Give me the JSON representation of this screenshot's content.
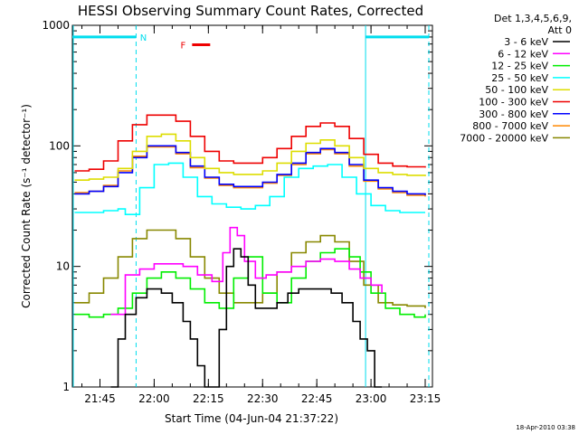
{
  "title": "HESSI Observing Summary Count Rates, Corrected",
  "footer_date": "18-Apr-2010 03:38",
  "detector_label_1": "Det 1,3,4,5,6,9,",
  "detector_label_2": "Att 0",
  "night_marker": "N",
  "flare_marker": "F",
  "chart_data": {
    "type": "line",
    "title": "HESSI Observing Summary Count Rates, Corrected",
    "xlabel": "Start Time (04-Jun-04 21:37:22)",
    "ylabel": "Corrected Count Rate (s⁻¹ detector⁻¹)",
    "y_scale": "log",
    "ylim": [
      1,
      1000
    ],
    "xlim": [
      "21:37:22",
      "23:17:00"
    ],
    "x_ticks": [
      "21:45",
      "22:00",
      "22:15",
      "22:30",
      "22:45",
      "23:00",
      "23:15"
    ],
    "y_ticks": [
      "1",
      "10",
      "100",
      "1000"
    ],
    "grid": false,
    "legend_position": "right",
    "series": [
      {
        "name": "3 - 6 keV",
        "color": "#000000",
        "x": [
          "21:48",
          "21:50",
          "21:52",
          "21:55",
          "21:58",
          "22:00",
          "22:02",
          "22:05",
          "22:08",
          "22:10",
          "22:12",
          "22:14",
          "22:16",
          "22:18",
          "22:20",
          "22:22",
          "22:24",
          "22:26",
          "22:28",
          "22:31",
          "22:34",
          "22:37",
          "22:40",
          "22:43",
          "22:46",
          "22:49",
          "22:52",
          "22:55",
          "22:57",
          "22:59",
          "23:01",
          "23:03"
        ],
        "values": [
          1.0,
          2.5,
          4.0,
          5.5,
          6.5,
          6.5,
          6.0,
          5.0,
          3.5,
          2.5,
          1.5,
          1.0,
          1.0,
          3.0,
          10.0,
          14.0,
          12.0,
          7.0,
          4.5,
          4.5,
          5.0,
          6.0,
          6.5,
          6.5,
          6.5,
          6.0,
          5.0,
          3.5,
          2.5,
          2.0,
          1.0,
          1.0
        ]
      },
      {
        "name": "6 - 12 keV",
        "color": "#ff00ff",
        "x": [
          "21:48",
          "21:52",
          "21:56",
          "22:00",
          "22:04",
          "22:08",
          "22:12",
          "22:16",
          "22:19",
          "22:21",
          "22:23",
          "22:25",
          "22:28",
          "22:31",
          "22:34",
          "22:38",
          "22:42",
          "22:46",
          "22:50",
          "22:54",
          "22:57",
          "23:00",
          "23:03"
        ],
        "values": [
          4.0,
          8.5,
          9.5,
          10.5,
          10.5,
          10.0,
          8.5,
          7.5,
          13.0,
          21.0,
          18.0,
          11.0,
          8.0,
          8.5,
          9.0,
          10.0,
          11.0,
          11.5,
          11.0,
          9.5,
          8.0,
          7.0,
          6.0
        ]
      },
      {
        "name": "12 - 25 keV",
        "color": "#00ee00",
        "x": [
          "21:38",
          "21:42",
          "21:46",
          "21:50",
          "21:54",
          "21:58",
          "22:02",
          "22:06",
          "22:10",
          "22:14",
          "22:18",
          "22:22",
          "22:26",
          "22:30",
          "22:34",
          "22:38",
          "22:42",
          "22:46",
          "22:50",
          "22:54",
          "22:57",
          "23:00",
          "23:04",
          "23:08",
          "23:12",
          "23:15"
        ],
        "values": [
          4.0,
          3.8,
          4.0,
          4.5,
          6.0,
          8.0,
          9.0,
          8.0,
          6.5,
          5.0,
          4.5,
          8.0,
          12.0,
          6.0,
          5.0,
          8.0,
          11.0,
          13.0,
          14.0,
          12.0,
          9.0,
          6.0,
          4.5,
          4.0,
          3.8,
          4.0
        ]
      },
      {
        "name": "25 - 50 keV",
        "color": "#00ffff",
        "x": [
          "21:38",
          "21:42",
          "21:46",
          "21:50",
          "21:52",
          "21:56",
          "22:00",
          "22:04",
          "22:08",
          "22:12",
          "22:16",
          "22:20",
          "22:24",
          "22:28",
          "22:32",
          "22:36",
          "22:40",
          "22:44",
          "22:48",
          "22:52",
          "22:56",
          "23:00",
          "23:04",
          "23:08",
          "23:12",
          "23:15"
        ],
        "values": [
          28,
          28,
          29,
          30,
          27,
          45,
          70,
          72,
          55,
          38,
          33,
          31,
          30,
          32,
          38,
          55,
          65,
          68,
          70,
          55,
          40,
          32,
          29,
          28,
          28,
          28
        ]
      },
      {
        "name": "50 - 100 keV",
        "color": "#dddd00",
        "x": [
          "21:38",
          "21:42",
          "21:46",
          "21:50",
          "21:54",
          "21:58",
          "22:02",
          "22:06",
          "22:10",
          "22:14",
          "22:18",
          "22:22",
          "22:26",
          "22:30",
          "22:34",
          "22:38",
          "22:42",
          "22:46",
          "22:50",
          "22:54",
          "22:58",
          "23:02",
          "23:06",
          "23:10",
          "23:15"
        ],
        "values": [
          52,
          53,
          55,
          65,
          90,
          120,
          125,
          110,
          80,
          65,
          60,
          58,
          58,
          62,
          72,
          90,
          105,
          112,
          100,
          80,
          65,
          60,
          58,
          57,
          56
        ]
      },
      {
        "name": "100 - 300 keV",
        "color": "#ee0000",
        "x": [
          "21:38",
          "21:42",
          "21:46",
          "21:50",
          "21:54",
          "21:58",
          "22:02",
          "22:06",
          "22:10",
          "22:14",
          "22:18",
          "22:22",
          "22:26",
          "22:30",
          "22:34",
          "22:38",
          "22:42",
          "22:46",
          "22:50",
          "22:54",
          "22:58",
          "23:02",
          "23:06",
          "23:10",
          "23:15"
        ],
        "values": [
          62,
          64,
          75,
          110,
          150,
          180,
          180,
          160,
          120,
          90,
          75,
          72,
          72,
          80,
          95,
          120,
          145,
          155,
          145,
          115,
          85,
          72,
          68,
          67,
          66
        ]
      },
      {
        "name": "300 - 800 keV",
        "color": "#0000ff",
        "x": [
          "21:38",
          "21:42",
          "21:46",
          "21:50",
          "21:54",
          "21:58",
          "22:02",
          "22:06",
          "22:10",
          "22:14",
          "22:18",
          "22:22",
          "22:26",
          "22:30",
          "22:34",
          "22:38",
          "22:42",
          "22:46",
          "22:50",
          "22:54",
          "22:58",
          "23:02",
          "23:06",
          "23:10",
          "23:15"
        ],
        "values": [
          40,
          42,
          46,
          60,
          80,
          100,
          100,
          88,
          68,
          55,
          48,
          46,
          46,
          50,
          58,
          72,
          88,
          95,
          88,
          70,
          52,
          45,
          42,
          40,
          39
        ]
      },
      {
        "name": "800 - 7000 keV",
        "color": "#ff8800",
        "x": [
          "21:38",
          "21:42",
          "21:46",
          "21:50",
          "21:54",
          "21:58",
          "22:02",
          "22:06",
          "22:10",
          "22:14",
          "22:18",
          "22:22",
          "22:26",
          "22:30",
          "22:34",
          "22:38",
          "22:42",
          "22:46",
          "22:50",
          "22:54",
          "22:58",
          "23:02",
          "23:06",
          "23:10",
          "23:15"
        ],
        "values": [
          41,
          42,
          47,
          62,
          82,
          98,
          98,
          86,
          66,
          54,
          47,
          45,
          45,
          49,
          57,
          70,
          86,
          93,
          86,
          68,
          51,
          44,
          41,
          39,
          38
        ]
      },
      {
        "name": "7000 - 20000 keV",
        "color": "#888800",
        "x": [
          "21:38",
          "21:42",
          "21:46",
          "21:50",
          "21:54",
          "21:58",
          "22:02",
          "22:06",
          "22:10",
          "22:14",
          "22:18",
          "22:22",
          "22:26",
          "22:30",
          "22:34",
          "22:38",
          "22:42",
          "22:46",
          "22:50",
          "22:54",
          "22:58",
          "23:02",
          "23:06",
          "23:10",
          "23:15"
        ],
        "values": [
          5.0,
          6.0,
          8.0,
          12.0,
          17.0,
          20.0,
          20.0,
          17.0,
          12.0,
          8.0,
          6.0,
          5.0,
          5.0,
          6.0,
          9.0,
          13.0,
          16.0,
          18.0,
          16.0,
          11.0,
          7.0,
          5.0,
          4.8,
          4.7,
          4.5
        ]
      }
    ],
    "annotations": {
      "night_intervals": [
        [
          "21:37:22",
          "21:55:00"
        ],
        [
          "22:58:30",
          "23:16:00"
        ]
      ],
      "flare_interval": [
        "22:10:30",
        "22:15:30"
      ],
      "vertical_lines": [
        "21:55:00",
        "22:58:30",
        "23:16:00"
      ]
    }
  },
  "colors": {
    "night_bar": "#00ddee",
    "flare_bar": "#ee0000",
    "axis": "#000000"
  }
}
